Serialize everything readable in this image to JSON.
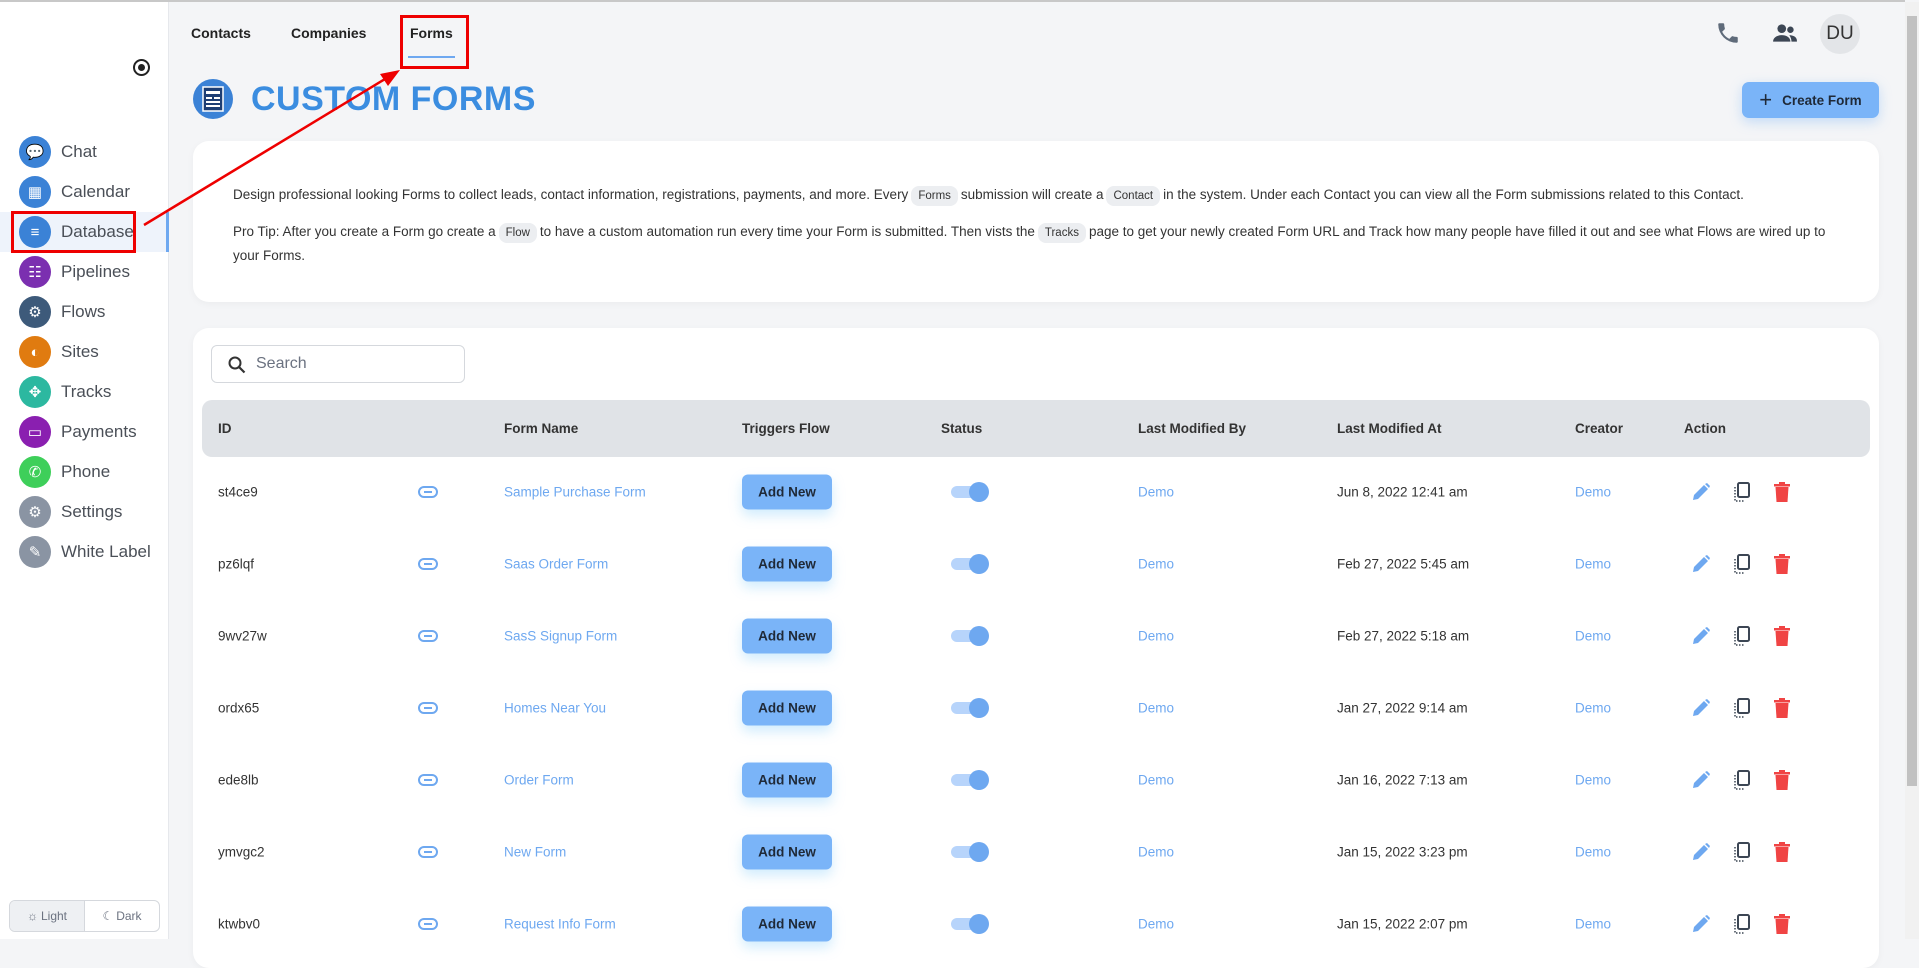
{
  "tabs": [
    {
      "label": "Contacts"
    },
    {
      "label": "Companies"
    },
    {
      "label": "Forms",
      "active": true
    }
  ],
  "sidebar": {
    "items": [
      {
        "label": "Chat",
        "icon": "chat-icon",
        "color": "#3b82d6"
      },
      {
        "label": "Calendar",
        "icon": "calendar-icon",
        "color": "#3b82d6"
      },
      {
        "label": "Database",
        "icon": "database-icon",
        "color": "#3b82d6",
        "active": true
      },
      {
        "label": "Pipelines",
        "icon": "pipelines-icon",
        "color": "#7b2fb0"
      },
      {
        "label": "Flows",
        "icon": "flows-icon",
        "color": "#3d5a7a"
      },
      {
        "label": "Sites",
        "icon": "sites-icon",
        "color": "#e07b10"
      },
      {
        "label": "Tracks",
        "icon": "tracks-icon",
        "color": "#2cb8a0"
      },
      {
        "label": "Payments",
        "icon": "payments-icon",
        "color": "#8a1fb0"
      },
      {
        "label": "Phone",
        "icon": "phone-icon",
        "color": "#3ecf5a"
      },
      {
        "label": "Settings",
        "icon": "settings-icon",
        "color": "#8a94a3"
      },
      {
        "label": "White Label",
        "icon": "white-label-icon",
        "color": "#8a94a3"
      }
    ],
    "theme": {
      "light": "Light",
      "dark": "Dark",
      "selected": "Light"
    }
  },
  "header": {
    "avatar": "DU"
  },
  "page": {
    "title": "CUSTOM FORMS",
    "create_label": "Create Form"
  },
  "info": {
    "p1": [
      "Design professional looking Forms to collect leads, contact information, registrations, payments, and more. Every",
      "Forms",
      "submission will create a",
      "Contact",
      "in the system. Under each Contact you can view all the Form submissions related to this Contact."
    ],
    "p2": [
      "Pro Tip: After you create a Form go create a",
      "Flow",
      "to have a custom automation run every time your Form is submitted. Then vists the",
      "Tracks",
      "page to get your newly created Form URL and Track how many people have filled it out and see what Flows are wired up to your Forms."
    ]
  },
  "search": {
    "placeholder": "Search"
  },
  "table": {
    "columns": [
      "ID",
      "Form Name",
      "Triggers Flow",
      "Status",
      "Last Modified By",
      "Last Modified At",
      "Creator",
      "Action"
    ],
    "add_label": "Add New",
    "rows": [
      {
        "id": "st4ce9",
        "name": "Sample Purchase Form",
        "status": true,
        "modified_by": "Demo",
        "modified_at": "Jun 8, 2022 12:41 am",
        "creator": "Demo"
      },
      {
        "id": "pz6lqf",
        "name": "Saas Order Form",
        "status": true,
        "modified_by": "Demo",
        "modified_at": "Feb 27, 2022 5:45 am",
        "creator": "Demo"
      },
      {
        "id": "9wv27w",
        "name": "SasS Signup Form",
        "status": true,
        "modified_by": "Demo",
        "modified_at": "Feb 27, 2022 5:18 am",
        "creator": "Demo"
      },
      {
        "id": "ordx65",
        "name": "Homes Near You",
        "status": true,
        "modified_by": "Demo",
        "modified_at": "Jan 27, 2022 9:14 am",
        "creator": "Demo"
      },
      {
        "id": "ede8lb",
        "name": "Order Form",
        "status": true,
        "modified_by": "Demo",
        "modified_at": "Jan 16, 2022 7:13 am",
        "creator": "Demo"
      },
      {
        "id": "ymvgc2",
        "name": "New Form",
        "status": true,
        "modified_by": "Demo",
        "modified_at": "Jan 15, 2022 3:23 pm",
        "creator": "Demo"
      },
      {
        "id": "ktwbv0",
        "name": "Request Info Form",
        "status": true,
        "modified_by": "Demo",
        "modified_at": "Jan 15, 2022 2:07 pm",
        "creator": "Demo"
      }
    ]
  },
  "colors": {
    "accent": "#3b8de0",
    "button": "#7ab4f8",
    "link": "#6ea8f0",
    "delete": "#f04444",
    "annotation": "#ee0000"
  }
}
